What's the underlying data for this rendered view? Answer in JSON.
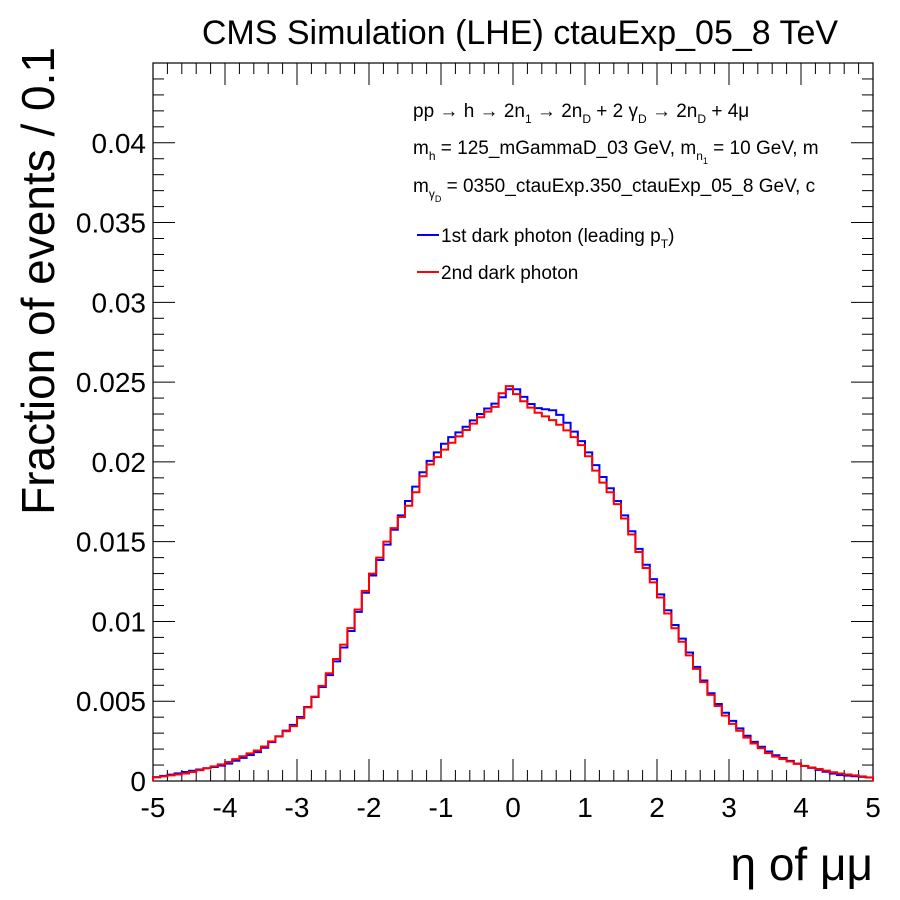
{
  "chart_data": {
    "type": "line",
    "title": "CMS Simulation (LHE) ctauExp_05_8 TeV",
    "xlabel": "η of μμ",
    "ylabel": "Fraction of events / 0.1",
    "xlim": [
      -5,
      5
    ],
    "ylim": [
      0,
      0.045
    ],
    "x_ticks": [
      "-5",
      "-4",
      "-3",
      "-2",
      "-1",
      "0",
      "1",
      "2",
      "3",
      "4",
      "5"
    ],
    "y_ticks": [
      "0",
      "0.005",
      "0.01",
      "0.015",
      "0.02",
      "0.025",
      "0.03",
      "0.035",
      "0.04"
    ],
    "bin_width": 0.1,
    "legend_position": "top-right",
    "grid": false,
    "annotations": {
      "line1": {
        "a": "pp → h → 2n",
        "b": "1",
        "c": " → 2n",
        "d": "D",
        "e": " + 2 γ",
        "f": "D",
        "g": " → 2n",
        "h": "D",
        "i": " + 4μ"
      },
      "line2": {
        "a": "m",
        "b": "h",
        "c": " = 125_mGammaD_03 GeV, m",
        "d": "n",
        "e": "1",
        "f": " = 10 GeV, m"
      },
      "line3": {
        "a": "m",
        "b": "γ",
        "c": "D",
        "d": " = 0350_ctauExp.350_ctauExp_05_8 GeV, c"
      }
    },
    "series": [
      {
        "name": "1st dark photon (leading p",
        "name_sub": "T",
        "name_suffix": ")",
        "color": "#0000ff",
        "points": [
          [
            -5.0,
            0.0002
          ],
          [
            -4.5,
            0.0006
          ],
          [
            -4.0,
            0.001
          ],
          [
            -3.5,
            0.0019
          ],
          [
            -3.0,
            0.0037
          ],
          [
            -2.6,
            0.0062
          ],
          [
            -2.3,
            0.0088
          ],
          [
            -2.0,
            0.0124
          ],
          [
            -1.7,
            0.0153
          ],
          [
            -1.4,
            0.018
          ],
          [
            -1.2,
            0.0198
          ],
          [
            -0.9,
            0.0214
          ],
          [
            -0.7,
            0.022
          ],
          [
            -0.4,
            0.0232
          ],
          [
            -0.2,
            0.0238
          ],
          [
            0.0,
            0.0248
          ],
          [
            0.1,
            0.0243
          ],
          [
            0.3,
            0.0234
          ],
          [
            0.6,
            0.0232
          ],
          [
            0.8,
            0.0222
          ],
          [
            1.0,
            0.021
          ],
          [
            1.2,
            0.0194
          ],
          [
            1.4,
            0.018
          ],
          [
            1.6,
            0.0162
          ],
          [
            1.8,
            0.014
          ],
          [
            2.0,
            0.0122
          ],
          [
            2.2,
            0.0102
          ],
          [
            2.4,
            0.0085
          ],
          [
            2.6,
            0.0067
          ],
          [
            2.8,
            0.0051
          ],
          [
            3.0,
            0.004
          ],
          [
            3.3,
            0.0026
          ],
          [
            3.6,
            0.0017
          ],
          [
            4.0,
            0.001
          ],
          [
            4.5,
            0.0004
          ],
          [
            5.0,
            0.0002
          ]
        ]
      },
      {
        "name": "2nd dark photon",
        "color": "#ff0000",
        "points": [
          [
            -5.0,
            0.0002
          ],
          [
            -4.5,
            0.0005
          ],
          [
            -4.0,
            0.0011
          ],
          [
            -3.5,
            0.002
          ],
          [
            -3.0,
            0.0036
          ],
          [
            -2.6,
            0.0063
          ],
          [
            -2.3,
            0.009
          ],
          [
            -2.0,
            0.0125
          ],
          [
            -1.7,
            0.0155
          ],
          [
            -1.4,
            0.0176
          ],
          [
            -1.2,
            0.0196
          ],
          [
            -0.9,
            0.021
          ],
          [
            -0.7,
            0.0218
          ],
          [
            -0.4,
            0.023
          ],
          [
            -0.2,
            0.0236
          ],
          [
            -0.1,
            0.025
          ],
          [
            0.1,
            0.024
          ],
          [
            0.3,
            0.0232
          ],
          [
            0.6,
            0.0225
          ],
          [
            0.8,
            0.0218
          ],
          [
            1.0,
            0.0208
          ],
          [
            1.2,
            0.019
          ],
          [
            1.4,
            0.0178
          ],
          [
            1.6,
            0.016
          ],
          [
            1.8,
            0.0138
          ],
          [
            2.0,
            0.012
          ],
          [
            2.2,
            0.01
          ],
          [
            2.4,
            0.0083
          ],
          [
            2.6,
            0.0066
          ],
          [
            2.8,
            0.005
          ],
          [
            3.0,
            0.0038
          ],
          [
            3.3,
            0.0025
          ],
          [
            3.6,
            0.0016
          ],
          [
            4.0,
            0.001
          ],
          [
            4.5,
            0.0005
          ],
          [
            5.0,
            0.0002
          ]
        ]
      }
    ]
  }
}
